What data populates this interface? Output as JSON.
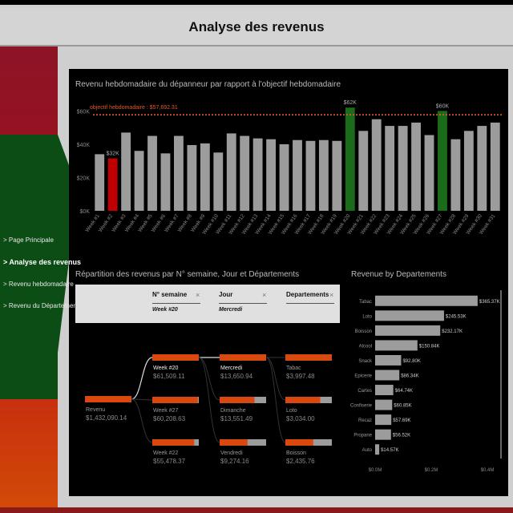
{
  "header": {
    "title": "Analyse des revenus"
  },
  "nav": {
    "items": [
      {
        "label": "> Page Principale",
        "active": false
      },
      {
        "label": "> Analyse des revenus",
        "active": true
      },
      {
        "label": "> Revenu hebdomadaire",
        "active": false
      },
      {
        "label": "> Revenu du Département",
        "active": false
      }
    ]
  },
  "colors": {
    "bar_default": "#9c9c9c",
    "bar_low": "#c00000",
    "bar_high": "#1a6b1a",
    "target_line": "#e05a2a",
    "accent": "#d9480f"
  },
  "chart_data": [
    {
      "type": "bar",
      "title": "Revenu hebdomadaire du dépanneur par rapport à l'objectif hebdomadaire",
      "target_label": "objectif hebdomadaire : $57,692.31",
      "target": 57692.31,
      "ylim": [
        0,
        65000
      ],
      "yticks": [
        0,
        20000,
        40000,
        60000
      ],
      "ytick_labels": [
        "$0K",
        "$20K",
        "$40K",
        "$60K"
      ],
      "categories": [
        "Week #1",
        "Week #2",
        "Week #3",
        "Week #4",
        "Week #5",
        "Week #6",
        "Week #7",
        "Week #8",
        "Week #9",
        "Week #10",
        "Week #11",
        "Week #12",
        "Week #13",
        "Week #14",
        "Week #15",
        "Week #16",
        "Week #17",
        "Week #18",
        "Week #19",
        "Week #20",
        "Week #21",
        "Week #22",
        "Week #23",
        "Week #24",
        "Week #25",
        "Week #26",
        "Week #27",
        "Week #28",
        "Week #29",
        "Week #30",
        "Week #31"
      ],
      "values": [
        34000,
        31500,
        47000,
        36000,
        45000,
        34500,
        45000,
        39500,
        40500,
        35000,
        46500,
        45000,
        43500,
        43000,
        40000,
        42500,
        42000,
        42500,
        42000,
        62000,
        48000,
        55000,
        51000,
        51000,
        53000,
        45500,
        60000,
        43000,
        48000,
        51000,
        53000
      ],
      "data_labels": [
        {
          "index": 1,
          "text": "$32K"
        },
        {
          "index": 19,
          "text": "$62K"
        },
        {
          "index": 26,
          "text": "$60K"
        }
      ],
      "highlight_low": [
        1
      ],
      "highlight_high": [
        19,
        26
      ]
    },
    {
      "type": "bar",
      "orientation": "horizontal",
      "title": "Revenue by Departements",
      "categories": [
        "Tabac",
        "Loto",
        "Boisson",
        "Alcool",
        "Snack",
        "Epicerie",
        "Cartes",
        "Confiserie",
        "Recaz",
        "Propane",
        "Auto"
      ],
      "values": [
        365370,
        245530,
        232170,
        150840,
        92800,
        86340,
        64740,
        60850,
        57690,
        56520,
        14570
      ],
      "value_labels": [
        "$365.37K",
        "$245.53K",
        "$232.17K",
        "$150.84K",
        "$92.80K",
        "$86.34K",
        "$64.74K",
        "$60.85K",
        "$57.69K",
        "$56.52K",
        "$14.57K"
      ],
      "xlim": [
        0,
        400000
      ],
      "xticks": [
        0,
        200000,
        400000
      ],
      "xtick_labels": [
        "$0.0M",
        "$0.2M",
        "$0.4M"
      ]
    }
  ],
  "decomp": {
    "title": "Répartition des revenus par N° semaine, Jour et Départements",
    "filters": [
      {
        "title": "N° semaine",
        "value": "Week #20"
      },
      {
        "title": "Jour",
        "value": "Mercredi"
      },
      {
        "title": "Departements",
        "value": ""
      }
    ],
    "filter_close": "×",
    "root": {
      "label": "Revenu",
      "value": "$1,432,090.14",
      "fill": 1.0
    },
    "level1": [
      {
        "label": "Week #20",
        "value": "$61,509.11",
        "fill": 1.0,
        "selected": true
      },
      {
        "label": "Week #27",
        "value": "$60,208.63",
        "fill": 0.98,
        "selected": false
      },
      {
        "label": "Week #22",
        "value": "$55,478.37",
        "fill": 0.9,
        "selected": false
      }
    ],
    "level2": [
      {
        "label": "Mercredi",
        "value": "$13,650.94",
        "fill": 1.0,
        "selected": true
      },
      {
        "label": "Dimanche",
        "value": "$13,551.49",
        "fill": 0.75,
        "selected": false
      },
      {
        "label": "Vendredi",
        "value": "$9,274.16",
        "fill": 0.6,
        "selected": false
      }
    ],
    "level3": [
      {
        "label": "Tabac",
        "value": "$3,997.48",
        "fill": 1.0,
        "selected": false
      },
      {
        "label": "Loto",
        "value": "$3,034.00",
        "fill": 0.75,
        "selected": false
      },
      {
        "label": "Boisson",
        "value": "$2,435.76",
        "fill": 0.6,
        "selected": false
      }
    ]
  }
}
